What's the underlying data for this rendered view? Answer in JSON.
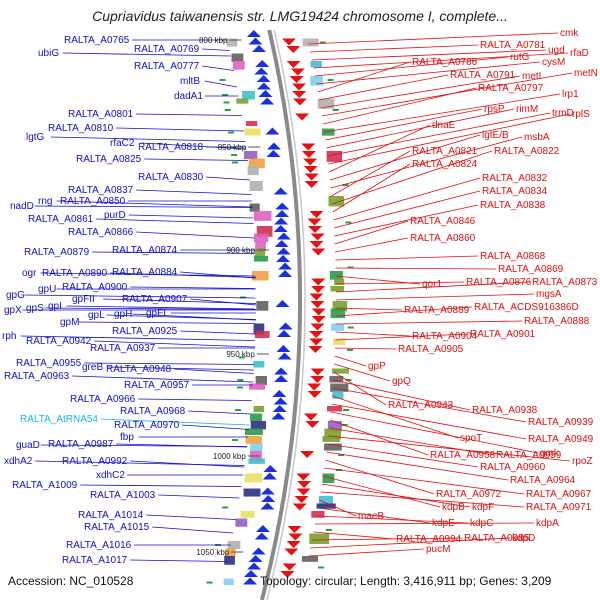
{
  "title": "Cupriavidus taiwanensis str. LMG19424 chromosome I, complete...",
  "footer": {
    "accession": "Accession: NC_010528",
    "summary": "Topology: circular; Length: 3,416,911 bp; Genes: 3,209"
  },
  "colors": {
    "left_label": "#1010c8",
    "left_label_rna": "#19b8e0",
    "right_label": "#e01010",
    "backbone": "#8a8a8a",
    "fwd_arrow": "#1a2fe0",
    "rev_arrow": "#e81010"
  },
  "ticks": [
    {
      "label": "800 kbp"
    },
    {
      "label": "850 kbp"
    },
    {
      "label": "900 kbp"
    },
    {
      "label": "950 kbp"
    },
    {
      "label": "1000 kbp"
    },
    {
      "label": "1050 kbp"
    }
  ],
  "left_labels": [
    "RALTA_A0765",
    "RALTA_A0769",
    "ubiG",
    "RALTA_A0777",
    "mltB",
    "dadA1",
    "RALTA_A0801",
    "RALTA_A0810",
    "lgtG",
    "rfaC2",
    "RALTA_A0818",
    "RALTA_A0825",
    "RALTA_A0830",
    "RALTA_A0837",
    "rng",
    "RALTA_A0850",
    "nadD",
    "purD",
    "RALTA_A0861",
    "RALTA_A0866",
    "RALTA_A0874",
    "RALTA_A0879",
    "ogr",
    "RALTA_A0890",
    "RALTA_A0884",
    "gpU",
    "RALTA_A0900",
    "gpG",
    "gpFII",
    "RALTA_A0907",
    "gpX",
    "gpS",
    "gpI",
    "gpL",
    "gpH",
    "gpFI",
    "gpM",
    "RALTA_A0925",
    "rph",
    "RALTA_A0942",
    "RALTA_A0937",
    "RALTA_A0955",
    "greB",
    "RALTA_A0948",
    "RALTA_A0963",
    "RALTA_A0957",
    "RALTA_A0966",
    "RALTA_A0968",
    "RALTA_A0970",
    "RALTA_AtRNA54",
    "fbp",
    "guaD",
    "RALTA_A0987",
    "xdhA2",
    "RALTA_A0992",
    "xdhC2",
    "RALTA_A1009",
    "RALTA_A1003",
    "RALTA_A1014",
    "RALTA_A1015",
    "RALTA_A1016",
    "RALTA_A1017"
  ],
  "right_labels": [
    "cmk",
    "RALTA_A0781",
    "ugd",
    "rfaD",
    "rutG",
    "cysM",
    "RALTA_A0786",
    "RALTA_A0791",
    "metI",
    "metN",
    "RALTA_A0797",
    "lrp1",
    "rpsP",
    "rimM",
    "trmD",
    "rplS",
    "dnaE",
    "lgtE/B",
    "msbA",
    "RALTA_A0821",
    "RALTA_A0822",
    "RALTA_A0824",
    "RALTA_A0832",
    "RALTA_A0834",
    "RALTA_A0838",
    "RALTA_A0846",
    "RALTA_A0860",
    "RALTA_A0868",
    "RALTA_A0869",
    "qor1",
    "RALTA_A0876",
    "RALTA_A0873",
    "mgsA",
    "RALTA_A0889",
    "RALTA_ACDS916386D",
    "RALTA_A0888",
    "RALTA_A0904",
    "RALTA_A0901",
    "RALTA_A0905",
    "gpP",
    "gpQ",
    "RALTA_A0943",
    "RALTA_A0938",
    "RALTA_A0939",
    "spoT",
    "RALTA_A0949",
    "gmk",
    "RALTA_A0958",
    "RALTA_A0959",
    "rpoZ",
    "RALTA_A0960",
    "RALTA_A0964",
    "RALTA_A0972",
    "RALTA_A0967",
    "kdpB",
    "kdpF",
    "RALTA_A0971",
    "maeB",
    "kdpE",
    "kdpC",
    "kdpA",
    "RALTA_A0994",
    "RALTA_A0985",
    "kdpD",
    "pucM"
  ]
}
